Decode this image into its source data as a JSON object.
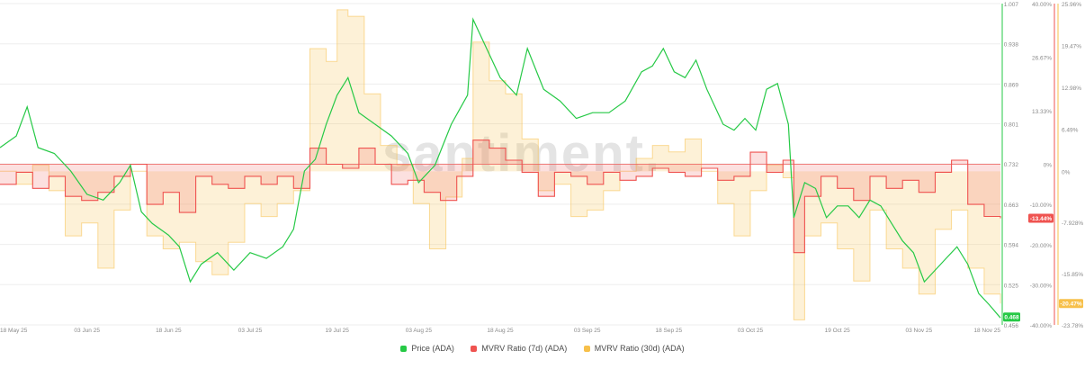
{
  "watermark": "santiment.",
  "legend": [
    {
      "label": "Price (ADA)",
      "color": "#26c946"
    },
    {
      "label": "MVRV Ratio (7d) (ADA)",
      "color": "#ef5350"
    },
    {
      "label": "MVRV Ratio (30d) (ADA)",
      "color": "#f7c04a"
    }
  ],
  "chart_data": {
    "type": "line",
    "title": "",
    "x_range": [
      "2025-05-18",
      "2025-11-18"
    ],
    "x_ticks": [
      "18 May 25",
      "03 Jun 25",
      "18 Jun 25",
      "03 Jul 25",
      "19 Jul 25",
      "03 Aug 25",
      "18 Aug 25",
      "03 Sep 25",
      "18 Sep 25",
      "03 Oct 25",
      "19 Oct 25",
      "03 Nov 25",
      "18 Nov 25"
    ],
    "axes": {
      "price": {
        "ticks": [
          "1.007",
          "0.938",
          "0.869",
          "0.801",
          "0.732",
          "0.663",
          "0.594",
          "0.525",
          "0.456"
        ],
        "range": [
          0.456,
          1.007
        ],
        "current_label": "0.468",
        "color": "#26c946"
      },
      "mvrv_7d": {
        "ticks": [
          "40.00%",
          "26.67%",
          "13.33%",
          "0%",
          "-10.00%",
          "-20.00%",
          "-30.00%",
          "-40.00%"
        ],
        "range": [
          -40,
          40
        ],
        "current_label": "-13.44%",
        "color": "#ef5350"
      },
      "mvrv_30d": {
        "ticks": [
          "25.96%",
          "19.47%",
          "12.98%",
          "6.49%",
          "0%",
          "-7.928%",
          "-15.85%",
          "-23.78%"
        ],
        "range": [
          -23.78,
          25.96
        ],
        "current_label": "-20.47%",
        "color": "#f7c04a"
      }
    },
    "series": [
      {
        "name": "Price (ADA)",
        "axis": "price",
        "color": "#26c946",
        "points": [
          [
            "2025-05-18",
            0.76
          ],
          [
            "2025-05-21",
            0.78
          ],
          [
            "2025-05-23",
            0.83
          ],
          [
            "2025-05-25",
            0.76
          ],
          [
            "2025-05-28",
            0.75
          ],
          [
            "2025-05-31",
            0.72
          ],
          [
            "2025-06-03",
            0.68
          ],
          [
            "2025-06-06",
            0.67
          ],
          [
            "2025-06-09",
            0.7
          ],
          [
            "2025-06-11",
            0.73
          ],
          [
            "2025-06-13",
            0.65
          ],
          [
            "2025-06-15",
            0.63
          ],
          [
            "2025-06-18",
            0.61
          ],
          [
            "2025-06-20",
            0.59
          ],
          [
            "2025-06-22",
            0.53
          ],
          [
            "2025-06-24",
            0.56
          ],
          [
            "2025-06-27",
            0.58
          ],
          [
            "2025-06-30",
            0.55
          ],
          [
            "2025-07-03",
            0.58
          ],
          [
            "2025-07-06",
            0.57
          ],
          [
            "2025-07-09",
            0.59
          ],
          [
            "2025-07-11",
            0.62
          ],
          [
            "2025-07-13",
            0.72
          ],
          [
            "2025-07-15",
            0.74
          ],
          [
            "2025-07-17",
            0.8
          ],
          [
            "2025-07-19",
            0.85
          ],
          [
            "2025-07-21",
            0.88
          ],
          [
            "2025-07-23",
            0.82
          ],
          [
            "2025-07-26",
            0.8
          ],
          [
            "2025-07-29",
            0.78
          ],
          [
            "2025-08-01",
            0.75
          ],
          [
            "2025-08-03",
            0.7
          ],
          [
            "2025-08-06",
            0.73
          ],
          [
            "2025-08-09",
            0.8
          ],
          [
            "2025-08-12",
            0.85
          ],
          [
            "2025-08-13",
            0.98
          ],
          [
            "2025-08-16",
            0.92
          ],
          [
            "2025-08-18",
            0.88
          ],
          [
            "2025-08-21",
            0.85
          ],
          [
            "2025-08-23",
            0.93
          ],
          [
            "2025-08-26",
            0.86
          ],
          [
            "2025-08-29",
            0.84
          ],
          [
            "2025-09-01",
            0.81
          ],
          [
            "2025-09-04",
            0.82
          ],
          [
            "2025-09-07",
            0.82
          ],
          [
            "2025-09-10",
            0.84
          ],
          [
            "2025-09-13",
            0.89
          ],
          [
            "2025-09-15",
            0.9
          ],
          [
            "2025-09-17",
            0.93
          ],
          [
            "2025-09-19",
            0.89
          ],
          [
            "2025-09-21",
            0.88
          ],
          [
            "2025-09-23",
            0.91
          ],
          [
            "2025-09-25",
            0.86
          ],
          [
            "2025-09-28",
            0.8
          ],
          [
            "2025-09-30",
            0.79
          ],
          [
            "2025-10-02",
            0.81
          ],
          [
            "2025-10-04",
            0.79
          ],
          [
            "2025-10-06",
            0.86
          ],
          [
            "2025-10-08",
            0.87
          ],
          [
            "2025-10-10",
            0.8
          ],
          [
            "2025-10-11",
            0.64
          ],
          [
            "2025-10-13",
            0.7
          ],
          [
            "2025-10-15",
            0.69
          ],
          [
            "2025-10-17",
            0.64
          ],
          [
            "2025-10-19",
            0.66
          ],
          [
            "2025-10-21",
            0.66
          ],
          [
            "2025-10-23",
            0.64
          ],
          [
            "2025-10-25",
            0.67
          ],
          [
            "2025-10-27",
            0.66
          ],
          [
            "2025-10-29",
            0.63
          ],
          [
            "2025-10-31",
            0.6
          ],
          [
            "2025-11-02",
            0.58
          ],
          [
            "2025-11-04",
            0.53
          ],
          [
            "2025-11-06",
            0.55
          ],
          [
            "2025-11-08",
            0.57
          ],
          [
            "2025-11-10",
            0.59
          ],
          [
            "2025-11-12",
            0.56
          ],
          [
            "2025-11-14",
            0.51
          ],
          [
            "2025-11-16",
            0.49
          ],
          [
            "2025-11-18",
            0.468
          ]
        ]
      },
      {
        "name": "MVRV Ratio (7d) (ADA)",
        "axis": "mvrv_7d",
        "color": "#ef5350",
        "points": [
          [
            "2025-05-18",
            -5
          ],
          [
            "2025-05-21",
            -2
          ],
          [
            "2025-05-24",
            -6
          ],
          [
            "2025-05-27",
            -3
          ],
          [
            "2025-05-30",
            -8
          ],
          [
            "2025-06-02",
            -9
          ],
          [
            "2025-06-05",
            -7
          ],
          [
            "2025-06-08",
            -3
          ],
          [
            "2025-06-11",
            0
          ],
          [
            "2025-06-14",
            -10
          ],
          [
            "2025-06-17",
            -7
          ],
          [
            "2025-06-20",
            -12
          ],
          [
            "2025-06-23",
            -3
          ],
          [
            "2025-06-26",
            -5
          ],
          [
            "2025-06-29",
            -6
          ],
          [
            "2025-07-02",
            -3
          ],
          [
            "2025-07-05",
            -5
          ],
          [
            "2025-07-08",
            -3
          ],
          [
            "2025-07-11",
            -6
          ],
          [
            "2025-07-14",
            4
          ],
          [
            "2025-07-17",
            0
          ],
          [
            "2025-07-20",
            -1
          ],
          [
            "2025-07-23",
            4
          ],
          [
            "2025-07-26",
            0
          ],
          [
            "2025-07-29",
            -5
          ],
          [
            "2025-08-01",
            -4
          ],
          [
            "2025-08-04",
            -7
          ],
          [
            "2025-08-07",
            -9
          ],
          [
            "2025-08-10",
            -3
          ],
          [
            "2025-08-13",
            6
          ],
          [
            "2025-08-16",
            4
          ],
          [
            "2025-08-19",
            1
          ],
          [
            "2025-08-22",
            -2
          ],
          [
            "2025-08-25",
            -8
          ],
          [
            "2025-08-28",
            -2
          ],
          [
            "2025-08-31",
            -3
          ],
          [
            "2025-09-03",
            -5
          ],
          [
            "2025-09-06",
            -2
          ],
          [
            "2025-09-09",
            -4
          ],
          [
            "2025-09-12",
            -3
          ],
          [
            "2025-09-15",
            -1
          ],
          [
            "2025-09-18",
            -2
          ],
          [
            "2025-09-21",
            -3
          ],
          [
            "2025-09-24",
            -1
          ],
          [
            "2025-09-27",
            -4
          ],
          [
            "2025-09-30",
            -3
          ],
          [
            "2025-10-03",
            3
          ],
          [
            "2025-10-06",
            -2
          ],
          [
            "2025-10-09",
            1
          ],
          [
            "2025-10-11",
            -22
          ],
          [
            "2025-10-13",
            -8
          ],
          [
            "2025-10-16",
            -3
          ],
          [
            "2025-10-19",
            -6
          ],
          [
            "2025-10-22",
            -9
          ],
          [
            "2025-10-25",
            -3
          ],
          [
            "2025-10-28",
            -6
          ],
          [
            "2025-10-31",
            -4
          ],
          [
            "2025-11-03",
            -7
          ],
          [
            "2025-11-06",
            -2
          ],
          [
            "2025-11-09",
            1
          ],
          [
            "2025-11-12",
            -10
          ],
          [
            "2025-11-15",
            -13
          ],
          [
            "2025-11-18",
            -13.44
          ]
        ]
      },
      {
        "name": "MVRV Ratio (30d) (ADA)",
        "axis": "mvrv_30d",
        "color": "#f7c04a",
        "points": [
          [
            "2025-05-18",
            0
          ],
          [
            "2025-05-21",
            -2
          ],
          [
            "2025-05-24",
            1
          ],
          [
            "2025-05-27",
            -3
          ],
          [
            "2025-05-30",
            -10
          ],
          [
            "2025-06-02",
            -8
          ],
          [
            "2025-06-05",
            -15
          ],
          [
            "2025-06-08",
            -6
          ],
          [
            "2025-06-11",
            0
          ],
          [
            "2025-06-14",
            -10
          ],
          [
            "2025-06-17",
            -12
          ],
          [
            "2025-06-20",
            -11
          ],
          [
            "2025-06-23",
            -14
          ],
          [
            "2025-06-26",
            -16
          ],
          [
            "2025-06-29",
            -11
          ],
          [
            "2025-07-02",
            -5
          ],
          [
            "2025-07-05",
            -7
          ],
          [
            "2025-07-08",
            -5
          ],
          [
            "2025-07-11",
            -3
          ],
          [
            "2025-07-14",
            19
          ],
          [
            "2025-07-17",
            17
          ],
          [
            "2025-07-19",
            25
          ],
          [
            "2025-07-21",
            24
          ],
          [
            "2025-07-24",
            12
          ],
          [
            "2025-07-27",
            4
          ],
          [
            "2025-07-30",
            1
          ],
          [
            "2025-08-02",
            -5
          ],
          [
            "2025-08-05",
            -12
          ],
          [
            "2025-08-08",
            -4
          ],
          [
            "2025-08-11",
            2
          ],
          [
            "2025-08-13",
            20
          ],
          [
            "2025-08-16",
            14
          ],
          [
            "2025-08-19",
            12
          ],
          [
            "2025-08-22",
            5
          ],
          [
            "2025-08-25",
            -3
          ],
          [
            "2025-08-28",
            -2
          ],
          [
            "2025-08-31",
            -7
          ],
          [
            "2025-09-03",
            -6
          ],
          [
            "2025-09-06",
            -3
          ],
          [
            "2025-09-09",
            0
          ],
          [
            "2025-09-12",
            2
          ],
          [
            "2025-09-15",
            4
          ],
          [
            "2025-09-18",
            3
          ],
          [
            "2025-09-21",
            5
          ],
          [
            "2025-09-24",
            0
          ],
          [
            "2025-09-27",
            -5
          ],
          [
            "2025-09-30",
            -10
          ],
          [
            "2025-10-03",
            -3
          ],
          [
            "2025-10-06",
            1
          ],
          [
            "2025-10-09",
            -1
          ],
          [
            "2025-10-11",
            -23
          ],
          [
            "2025-10-13",
            -10
          ],
          [
            "2025-10-16",
            -8
          ],
          [
            "2025-10-19",
            -12
          ],
          [
            "2025-10-22",
            -17
          ],
          [
            "2025-10-25",
            -6
          ],
          [
            "2025-10-28",
            -12
          ],
          [
            "2025-10-31",
            -15
          ],
          [
            "2025-11-03",
            -19
          ],
          [
            "2025-11-06",
            -9
          ],
          [
            "2025-11-09",
            -6
          ],
          [
            "2025-11-12",
            -15
          ],
          [
            "2025-11-15",
            -19
          ],
          [
            "2025-11-18",
            -20.47
          ]
        ]
      }
    ]
  }
}
